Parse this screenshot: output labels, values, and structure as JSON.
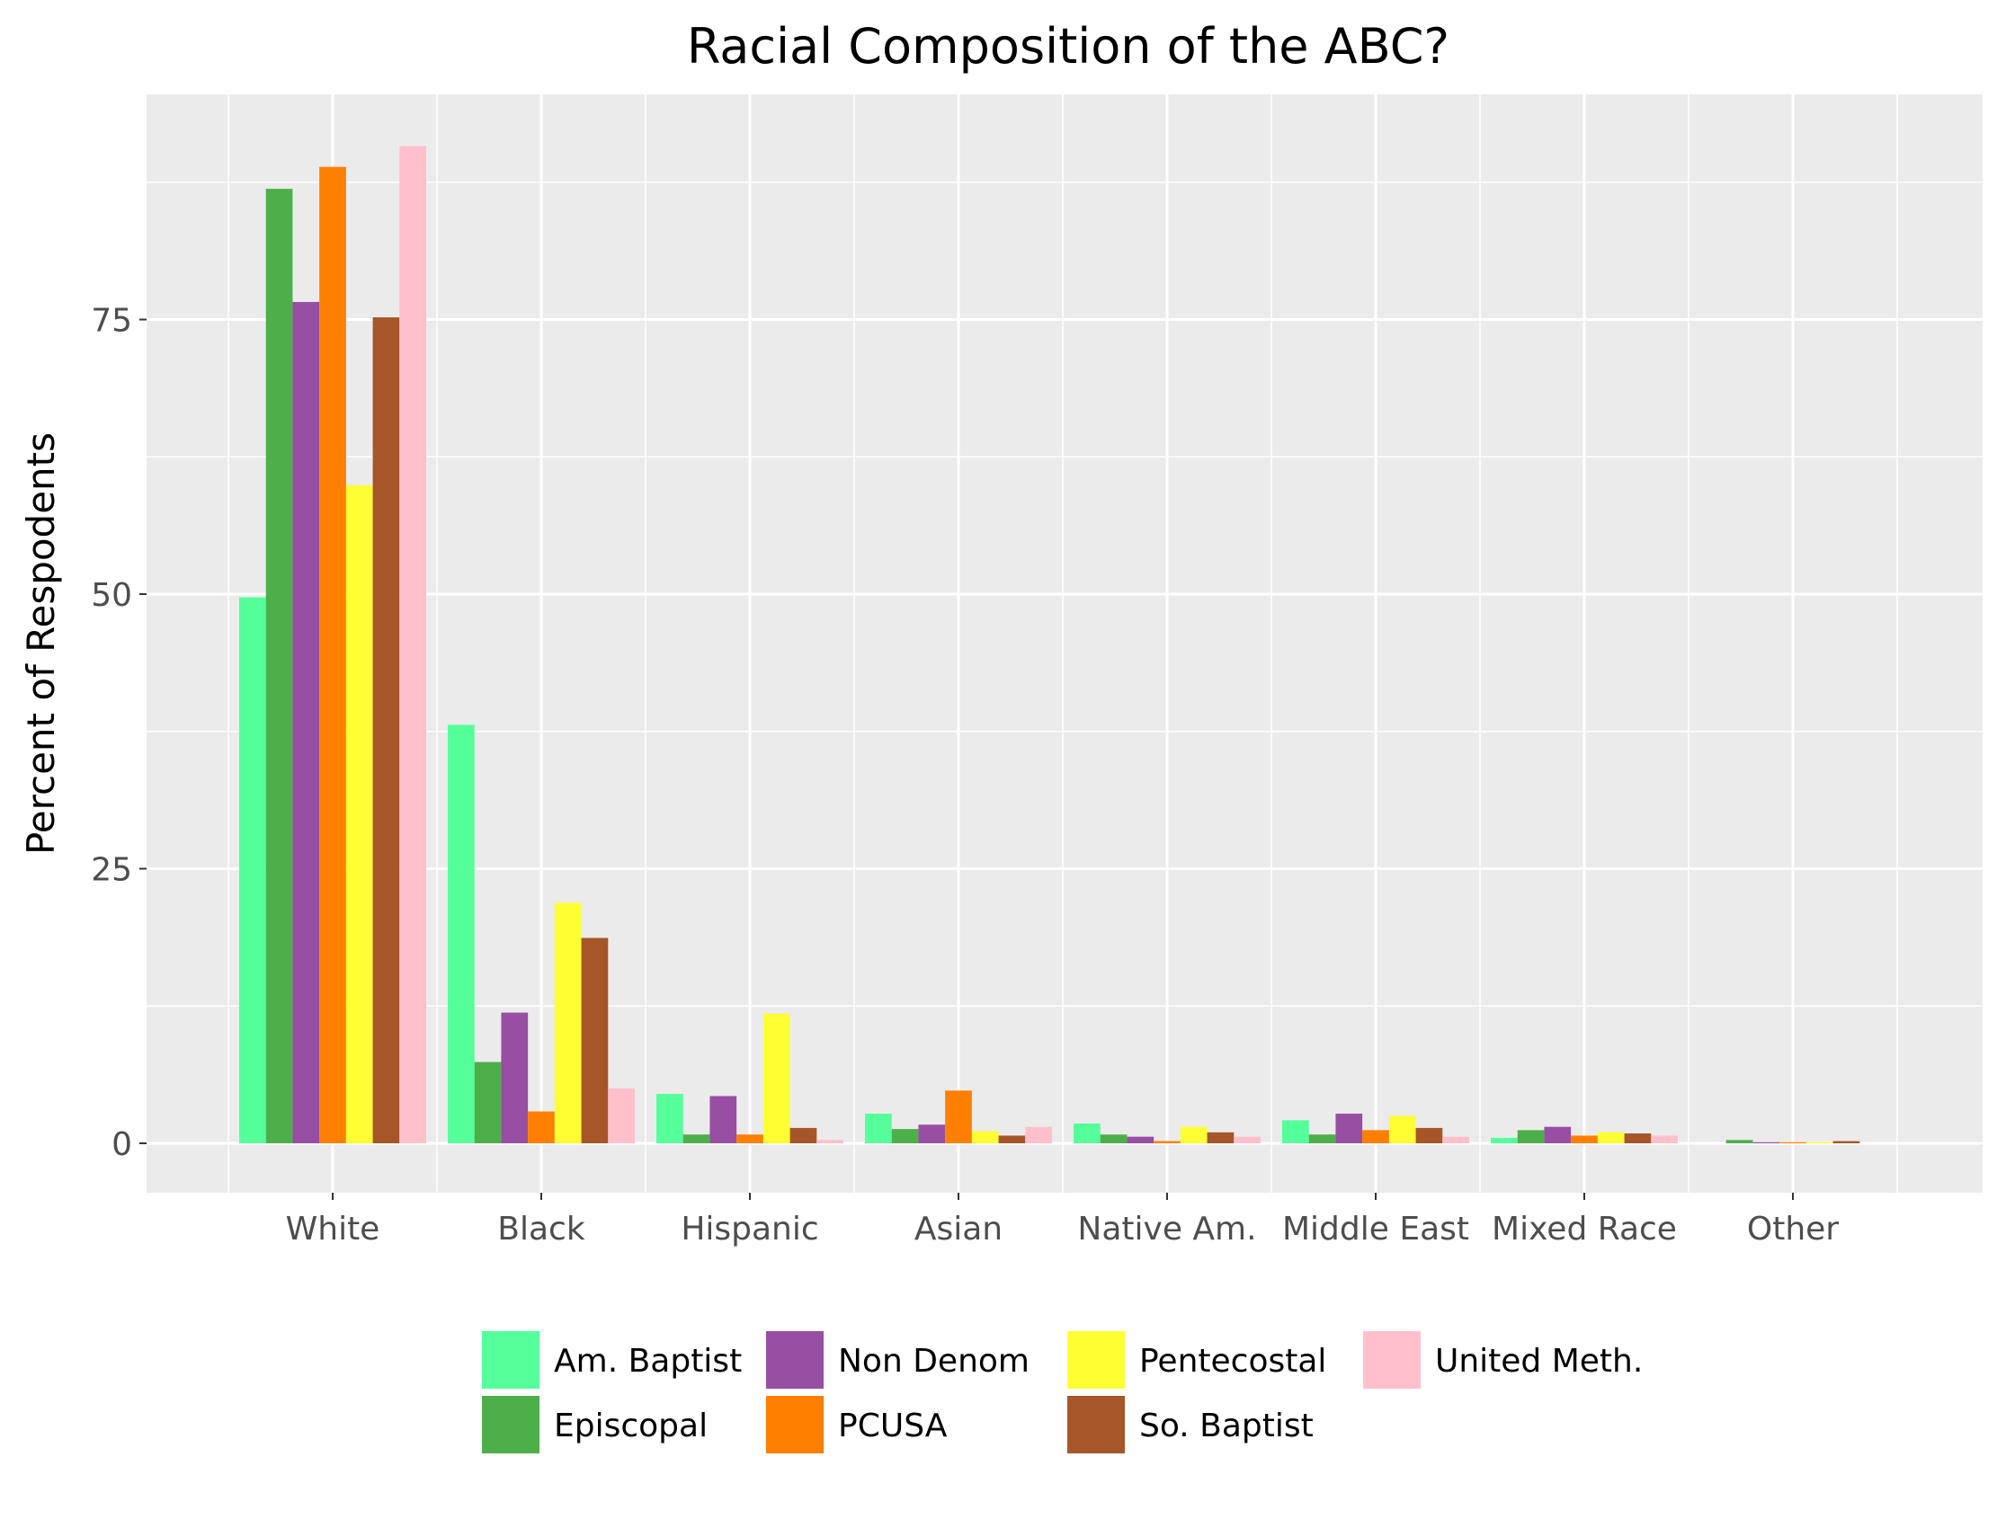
{
  "chart_data": {
    "type": "bar",
    "title": "Racial Composition of the ABC?",
    "xlabel": "",
    "ylabel": "Percent of Respodents",
    "ylim": [
      -4.5,
      95.5
    ],
    "yticks": [
      0,
      25,
      50,
      75
    ],
    "grid": true,
    "legend_position": "bottom",
    "categories": [
      "White",
      "Black",
      "Hispanic",
      "Asian",
      "Native Am.",
      "Middle East",
      "Mixed Race",
      "Other"
    ],
    "series": [
      {
        "name": "Am. Baptist",
        "color": "#55FF99",
        "values": [
          49.7,
          38.1,
          4.5,
          2.7,
          1.8,
          2.1,
          0.5,
          0.0
        ]
      },
      {
        "name": "Episcopal",
        "color": "#4DAF4A",
        "values": [
          86.9,
          7.4,
          0.8,
          1.3,
          0.8,
          0.8,
          1.2,
          0.3
        ]
      },
      {
        "name": "Non Denom",
        "color": "#984EA3",
        "values": [
          76.6,
          11.9,
          4.3,
          1.7,
          0.6,
          2.7,
          1.5,
          0.1
        ]
      },
      {
        "name": "PCUSA",
        "color": "#FF7F00",
        "values": [
          88.9,
          2.9,
          0.8,
          4.8,
          0.2,
          1.2,
          0.7,
          0.1
        ]
      },
      {
        "name": "Pentecostal",
        "color": "#FFFF33",
        "values": [
          59.9,
          21.9,
          11.8,
          1.1,
          1.5,
          2.5,
          1.0,
          0.1
        ]
      },
      {
        "name": "So. Baptist",
        "color": "#A65628",
        "values": [
          75.2,
          18.7,
          1.4,
          0.7,
          1.0,
          1.4,
          0.9,
          0.2
        ]
      },
      {
        "name": "United Meth.",
        "color": "#FFC0CB",
        "values": [
          90.8,
          5.0,
          0.3,
          1.5,
          0.6,
          0.6,
          0.7,
          0.0
        ]
      }
    ]
  },
  "colors": {
    "panel_background": "#EBEBEB",
    "grid_line": "#FFFFFF",
    "axis_text": "#4D4D4D"
  }
}
